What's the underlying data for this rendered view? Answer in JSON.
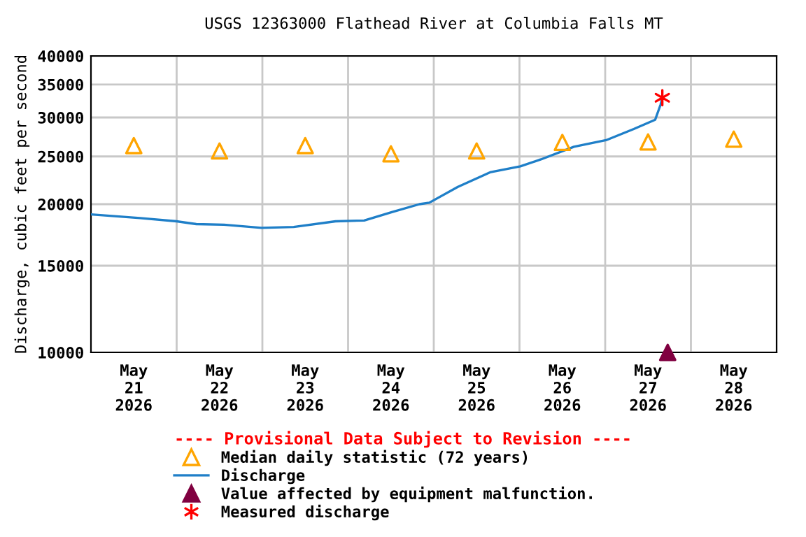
{
  "chart_data": {
    "type": "line",
    "title": "USGS 12363000 Flathead River at Columbia Falls MT",
    "ylabel": "Discharge, cubic feet per second",
    "legend_title": "---- Provisional Data Subject to Revision ----",
    "series": [
      {
        "name": "Median daily statistic (72 years)",
        "type": "scatter",
        "color": "#ffa500",
        "x": [
          "2026-05-21T12:00",
          "2026-05-22T12:00",
          "2026-05-23T12:00",
          "2026-05-24T12:00",
          "2026-05-25T12:00",
          "2026-05-26T12:00",
          "2026-05-27T12:00",
          "2026-05-28T12:00"
        ],
        "values": [
          26300,
          25650,
          26300,
          25300,
          25650,
          26700,
          26750,
          27100
        ]
      },
      {
        "name": "Discharge",
        "marker": "none",
        "line_style": "solid",
        "color": "#1f7fc8",
        "x": [
          "2026-05-21T00:00",
          "2026-05-21T13:45",
          "2026-05-22T00:00",
          "2026-05-22T05:30",
          "2026-05-22T13:15",
          "2026-05-22T23:45",
          "2026-05-23T08:45",
          "2026-05-23T20:30",
          "2026-05-24T04:30",
          "2026-05-24T12:15",
          "2026-05-24T20:00",
          "2026-05-24T22:45",
          "2026-05-25T06:45",
          "2026-05-25T15:45",
          "2026-05-26T00:15",
          "2026-05-26T06:00",
          "2026-05-26T15:15",
          "2026-05-27T00:15",
          "2026-05-27T08:00",
          "2026-05-27T14:00",
          "2026-05-27T15:30",
          "2026-05-27T16:00"
        ],
        "values": [
          19070,
          18740,
          18460,
          18220,
          18170,
          17900,
          17980,
          18460,
          18530,
          19270,
          20000,
          20140,
          21680,
          23210,
          23870,
          24660,
          26160,
          26980,
          28430,
          29690,
          31840,
          32900
        ]
      },
      {
        "name": "Value affected by equipment malfunction.",
        "type": "scatter",
        "marker": "triangle",
        "color": "#800040",
        "x": [
          "2026-05-27T17:30"
        ],
        "values": [
          10000
        ]
      },
      {
        "name": "Measured discharge",
        "type": "scatter",
        "marker": "cross",
        "color": "#ff0000",
        "x": [
          "2026-05-27T16:00"
        ],
        "values": [
          32900
        ]
      }
    ],
    "marker": "triangle",
    "log": "y",
    "xlim": [
      "2026-05-21T00:00",
      "2026-05-29T00:00"
    ],
    "xticks": [
      {
        "value": "2026-05-21T12:00",
        "label": "May\n21\n2026"
      },
      {
        "value": "2026-05-22T12:00",
        "label": "May\n22\n2026"
      },
      {
        "value": "2026-05-23T12:00",
        "label": "May\n23\n2026"
      },
      {
        "value": "2026-05-24T12:00",
        "label": "May\n24\n2026"
      },
      {
        "value": "2026-05-25T12:00",
        "label": "May\n25\n2026"
      },
      {
        "value": "2026-05-26T12:00",
        "label": "May\n26\n2026"
      },
      {
        "value": "2026-05-27T12:00",
        "label": "May\n27\n2026"
      },
      {
        "value": "2026-05-28T12:00",
        "label": "May\n28\n2026"
      },
      {
        "value": "2026-05-22T00:00",
        "label": null
      },
      {
        "value": "2026-05-23T00:00",
        "label": null
      },
      {
        "value": "2026-05-24T00:00",
        "label": null
      },
      {
        "value": "2026-05-25T00:00",
        "label": null
      },
      {
        "value": "2026-05-26T00:00",
        "label": null
      },
      {
        "value": "2026-05-27T00:00",
        "label": null
      },
      {
        "value": "2026-05-28T00:00",
        "label": null
      }
    ],
    "ylim": [
      10000,
      40000
    ],
    "yticks": [
      10000,
      15000,
      20000,
      25000,
      30000,
      35000,
      40000
    ],
    "grid": true,
    "legend": "bottom"
  }
}
